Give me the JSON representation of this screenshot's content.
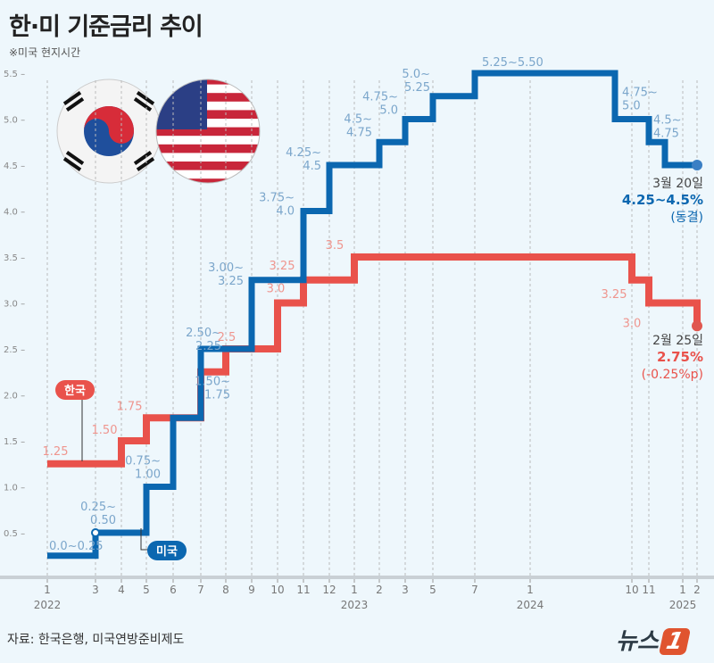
{
  "header": {
    "title": "한·미 기준금리 추이",
    "subtitle": "※미국 현지시간"
  },
  "footer": {
    "source": "자료: 한국은행, 미국연방준비제도",
    "logo_text": "뉴스",
    "logo_num": "1"
  },
  "colors": {
    "us": "#0b67b0",
    "kr": "#e9524b",
    "us_label": "#7ba6cb",
    "kr_label": "#ef958e",
    "bg": "#eef7fc"
  },
  "chart_data": {
    "type": "line",
    "step": true,
    "title": "한·미 기준금리 추이",
    "ylim": [
      0,
      5.5
    ],
    "yticks": [
      "0.5",
      "1.0",
      "1.5",
      "2.0",
      "2.5",
      "3.0",
      "3.5",
      "4.0",
      "4.5",
      "5.0",
      "5.5"
    ],
    "xticks": [
      {
        "date": "2022-01",
        "label": "1",
        "year": "2022"
      },
      {
        "date": "2022-03",
        "label": "3"
      },
      {
        "date": "2022-04",
        "label": "4"
      },
      {
        "date": "2022-05",
        "label": "5"
      },
      {
        "date": "2022-06",
        "label": "6"
      },
      {
        "date": "2022-07",
        "label": "7"
      },
      {
        "date": "2022-08",
        "label": "8"
      },
      {
        "date": "2022-09",
        "label": "9"
      },
      {
        "date": "2022-10",
        "label": "10"
      },
      {
        "date": "2022-11",
        "label": "11"
      },
      {
        "date": "2022-12",
        "label": "12"
      },
      {
        "date": "2023-01",
        "label": "1",
        "year": "2023"
      },
      {
        "date": "2023-02",
        "label": "2"
      },
      {
        "date": "2023-03",
        "label": "3"
      },
      {
        "date": "2023-05",
        "label": "5"
      },
      {
        "date": "2023-07",
        "label": "7"
      },
      {
        "date": "2024-01",
        "label": "1",
        "year": "2024"
      },
      {
        "date": "2024-10",
        "label": "10"
      },
      {
        "date": "2024-11",
        "label": "11"
      },
      {
        "date": "2025-01",
        "label": "1",
        "year": "2025"
      },
      {
        "date": "2025-02",
        "label": "2"
      }
    ],
    "series": [
      {
        "name": "미국",
        "points": [
          {
            "date": "2022-01",
            "value": 0.25,
            "label": "0.0~0.25"
          },
          {
            "date": "2022-03",
            "value": 0.5,
            "label": "0.25~ 0.50"
          },
          {
            "date": "2022-05",
            "value": 1.0,
            "label": "0.75~ 1.00"
          },
          {
            "date": "2022-06",
            "value": 1.75,
            "label": "1.50~ 1.75"
          },
          {
            "date": "2022-07",
            "value": 2.5,
            "label": "2.50~ 2.25"
          },
          {
            "date": "2022-09",
            "value": 3.25,
            "label": "3.00~ 3.25"
          },
          {
            "date": "2022-11",
            "value": 4.0,
            "label": "3.75~ 4.0"
          },
          {
            "date": "2022-12",
            "value": 4.5,
            "label": "4.25~ 4.5"
          },
          {
            "date": "2023-02",
            "value": 4.75,
            "label": "4.5~ 4.75"
          },
          {
            "date": "2023-03",
            "value": 5.0,
            "label": "4.75~ 5.0"
          },
          {
            "date": "2023-05",
            "value": 5.25,
            "label": "5.0~ 5.25"
          },
          {
            "date": "2023-07",
            "value": 5.5,
            "label": "5.25~5.50"
          },
          {
            "date": "2024-09",
            "value": 5.0,
            "label": "4.75~ 5.0"
          },
          {
            "date": "2024-11",
            "value": 4.75,
            "label": "4.5~ 4.75"
          },
          {
            "date": "2024-12",
            "value": 4.5,
            "label": ""
          },
          {
            "date": "2025-03",
            "value": 4.5,
            "label": ""
          }
        ]
      },
      {
        "name": "한국",
        "points": [
          {
            "date": "2022-01",
            "value": 1.25,
            "label": "1.25"
          },
          {
            "date": "2022-04",
            "value": 1.5,
            "label": "1.50"
          },
          {
            "date": "2022-05",
            "value": 1.75,
            "label": "1.75"
          },
          {
            "date": "2022-07",
            "value": 2.25,
            "label": ""
          },
          {
            "date": "2022-08",
            "value": 2.5,
            "label": "2.5"
          },
          {
            "date": "2022-10",
            "value": 3.0,
            "label": "3.0"
          },
          {
            "date": "2022-11",
            "value": 3.25,
            "label": "3.25"
          },
          {
            "date": "2023-01",
            "value": 3.5,
            "label": "3.5"
          },
          {
            "date": "2024-10",
            "value": 3.25,
            "label": "3.25"
          },
          {
            "date": "2024-11",
            "value": 3.0,
            "label": "3.0"
          },
          {
            "date": "2025-02",
            "value": 2.75,
            "label": ""
          },
          {
            "date": "2025-03",
            "value": 2.75,
            "label": ""
          }
        ]
      }
    ],
    "annotations": {
      "us": {
        "date": "3월 20일",
        "rate": "4.25~4.5%",
        "note": "(동결)"
      },
      "kr": {
        "date": "2월 25일",
        "rate": "2.75%",
        "note": "(-0.25%p)"
      }
    }
  }
}
